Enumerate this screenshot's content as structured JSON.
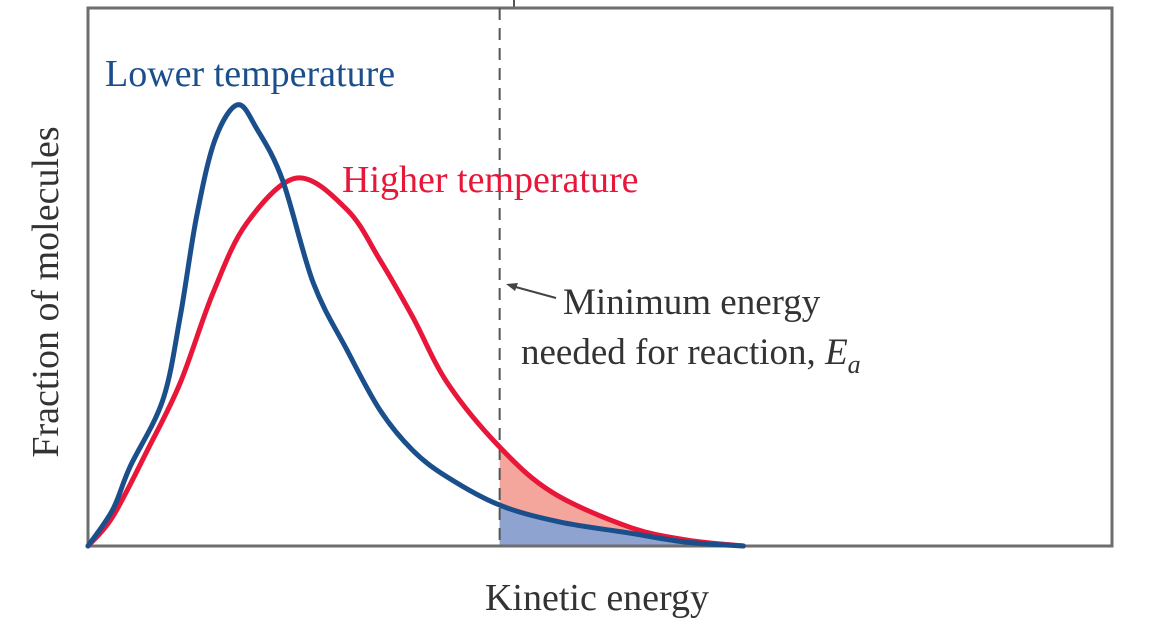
{
  "chart_data": {
    "type": "line",
    "title": "",
    "xlabel": "Kinetic energy",
    "ylabel": "Fraction of molecules",
    "xlim": [
      0,
      10
    ],
    "ylim": [
      0,
      1
    ],
    "grid": false,
    "ticks": false,
    "threshold": {
      "x": 4.02,
      "label_line1": "Minimum energy",
      "label_line2": "needed for reaction, ",
      "label_symbol": "E",
      "label_subscript": "a",
      "style": "dashed",
      "color": "#555555"
    },
    "series": [
      {
        "name": "Lower temperature",
        "color": "#1a4f8c",
        "fill_color": "#8fa3d1",
        "points": [
          [
            0,
            0
          ],
          [
            0.24,
            0.067
          ],
          [
            0.41,
            0.147
          ],
          [
            0.73,
            0.271
          ],
          [
            0.9,
            0.426
          ],
          [
            1.06,
            0.612
          ],
          [
            1.24,
            0.755
          ],
          [
            1.46,
            0.82
          ],
          [
            1.65,
            0.775
          ],
          [
            1.9,
            0.68
          ],
          [
            2.2,
            0.489
          ],
          [
            2.53,
            0.364
          ],
          [
            2.85,
            0.253
          ],
          [
            3.17,
            0.178
          ],
          [
            3.51,
            0.128
          ],
          [
            4.02,
            0.076
          ],
          [
            4.6,
            0.045
          ],
          [
            5.29,
            0.024
          ],
          [
            5.85,
            0.007
          ],
          [
            6.4,
            0
          ]
        ]
      },
      {
        "name": "Higher temperature",
        "color": "#e8173a",
        "fill_color": "#f4a59c",
        "points": [
          [
            0,
            0
          ],
          [
            0.24,
            0.054
          ],
          [
            0.58,
            0.178
          ],
          [
            0.9,
            0.303
          ],
          [
            1.22,
            0.47
          ],
          [
            1.55,
            0.6
          ],
          [
            2.04,
            0.684
          ],
          [
            2.53,
            0.625
          ],
          [
            2.85,
            0.532
          ],
          [
            3.17,
            0.426
          ],
          [
            3.51,
            0.303
          ],
          [
            4.02,
            0.184
          ],
          [
            4.54,
            0.099
          ],
          [
            5.29,
            0.035
          ],
          [
            5.85,
            0.011
          ],
          [
            6.4,
            0
          ]
        ]
      }
    ]
  }
}
